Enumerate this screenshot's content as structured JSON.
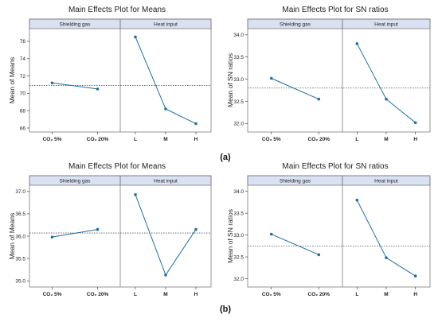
{
  "captions": [
    "(a)",
    "(b)"
  ],
  "colors": {
    "series": "#1f6fa3",
    "strip_fill": "#d9e1f2",
    "frame": "#7a7a7a",
    "mean_line": "#555555"
  },
  "chart_data": [
    {
      "type": "line",
      "title": "Main Effects Plot for Means",
      "ylabel": "Mean of Means",
      "ylim": [
        66,
        77
      ],
      "yticks": [
        "66",
        "68",
        "70",
        "72",
        "74",
        "76"
      ],
      "ytick_values": [
        66,
        68,
        70,
        72,
        74,
        76
      ],
      "overall_mean": 70.9,
      "panels": [
        {
          "strip": "Shielding gas",
          "categories": [
            "CO₂ 5%",
            "CO₂ 20%"
          ],
          "values": [
            71.2,
            70.5
          ]
        },
        {
          "strip": "Heat input",
          "categories": [
            "L",
            "M",
            "H"
          ],
          "values": [
            76.5,
            68.2,
            66.5
          ]
        }
      ]
    },
    {
      "type": "line",
      "title": "Main Effects Plot for SN ratios",
      "ylabel": "Mean of SN ratios",
      "ylim": [
        31.9,
        34.05
      ],
      "yticks": [
        "32.0",
        "32.5",
        "33.0",
        "33.5",
        "34.0"
      ],
      "ytick_values": [
        32.0,
        32.5,
        33.0,
        33.5,
        34.0
      ],
      "overall_mean": 32.8,
      "panels": [
        {
          "strip": "Shielding gas",
          "categories": [
            "CO₂ 5%",
            "CO₂ 20%"
          ],
          "values": [
            33.02,
            32.55
          ]
        },
        {
          "strip": "Heat input",
          "categories": [
            "L",
            "M",
            "H"
          ],
          "values": [
            33.8,
            32.55,
            32.02
          ]
        }
      ]
    },
    {
      "type": "line",
      "title": "Main Effects Plot for Means",
      "ylabel": "Mean of Means",
      "ylim": [
        34.95,
        37.05
      ],
      "yticks": [
        "35.0",
        "35.5",
        "36.0",
        "36.5",
        "37.0"
      ],
      "ytick_values": [
        35.0,
        35.5,
        36.0,
        36.5,
        37.0
      ],
      "overall_mean": 36.07,
      "panels": [
        {
          "strip": "Shielding gas",
          "categories": [
            "CO₂ 5%",
            "CO₂ 20%"
          ],
          "values": [
            35.98,
            36.15
          ]
        },
        {
          "strip": "Heat input",
          "categories": [
            "L",
            "M",
            "H"
          ],
          "values": [
            36.93,
            35.13,
            36.15
          ]
        }
      ]
    },
    {
      "type": "line",
      "title": "Main Effects Plot for SN ratios",
      "ylabel": "Mean of SN ratios",
      "ylim": [
        31.9,
        34.05
      ],
      "yticks": [
        "32.0",
        "32.5",
        "33.0",
        "33.5",
        "34.0"
      ],
      "ytick_values": [
        32.0,
        32.5,
        33.0,
        33.5,
        34.0
      ],
      "overall_mean": 32.75,
      "panels": [
        {
          "strip": "Shielding gas",
          "categories": [
            "CO₂ 5%",
            "CO₂ 20%"
          ],
          "values": [
            33.02,
            32.55
          ]
        },
        {
          "strip": "Heat input",
          "categories": [
            "L",
            "M",
            "H"
          ],
          "values": [
            33.8,
            32.48,
            32.06
          ]
        }
      ]
    }
  ]
}
